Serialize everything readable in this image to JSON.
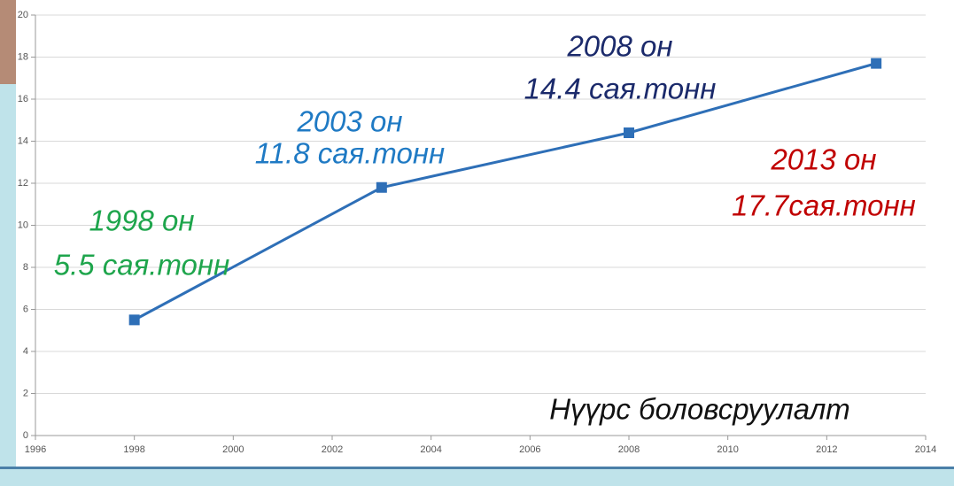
{
  "chart_data": {
    "type": "line",
    "x": [
      1998,
      2003,
      2008,
      2013
    ],
    "series": [
      {
        "color": "#2e6fb7",
        "values": [
          5.5,
          11.8,
          14.4,
          17.7
        ]
      }
    ],
    "xlim": [
      1996,
      2014
    ],
    "xticks": [
      1996,
      1998,
      2000,
      2002,
      2004,
      2006,
      2008,
      2010,
      2012,
      2014
    ],
    "ylim": [
      0,
      20
    ],
    "yticks": [
      0,
      2,
      4,
      6,
      8,
      10,
      12,
      14,
      16,
      18,
      20
    ],
    "grid": true,
    "annotations": [
      {
        "lines": [
          "1998 он",
          "5.5 сая.тонн"
        ],
        "color": "#1ea54c"
      },
      {
        "lines": [
          "2003 он",
          "11.8 сая.тонн"
        ],
        "color": "#1f7ac4"
      },
      {
        "lines": [
          "2008 он",
          "14.4 сая.тонн"
        ],
        "color": "#1b2a6b"
      },
      {
        "lines": [
          "2013 он",
          "17.7сая.тонн"
        ],
        "color": "#c00000"
      }
    ],
    "caption": "Нүүрс боловсруулалт"
  }
}
